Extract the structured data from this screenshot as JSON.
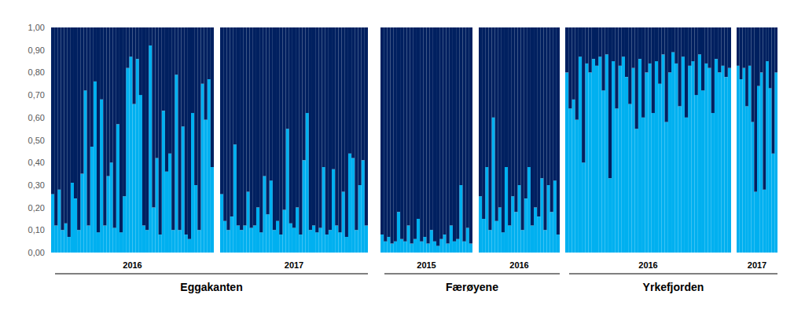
{
  "chart_data": [
    {
      "type": "bar",
      "stacked": true,
      "grid": false,
      "tick_labels": "y",
      "xlabel": "2016",
      "group": "Eggakanten",
      "ylim": [
        0,
        1
      ],
      "yticks": [
        {
          "value": 0,
          "label": "0,00"
        },
        {
          "value": 0.1,
          "label": "0,10"
        },
        {
          "value": 0.2,
          "label": "0,20"
        },
        {
          "value": 0.3,
          "label": "0,30"
        },
        {
          "value": 0.4,
          "label": "0,40"
        },
        {
          "value": 0.5,
          "label": "0,50"
        },
        {
          "value": 0.6,
          "label": "0,60"
        },
        {
          "value": 0.7,
          "label": "0,70"
        },
        {
          "value": 0.8,
          "label": "0,80"
        },
        {
          "value": 0.9,
          "label": "0,90"
        },
        {
          "value": 1,
          "label": "1,00"
        }
      ],
      "categories": [
        null,
        null,
        null,
        null,
        null,
        null,
        null,
        null,
        null,
        null,
        null,
        null,
        null,
        null,
        null,
        null,
        null,
        null,
        null,
        null,
        null,
        null,
        null,
        null,
        null,
        null,
        null,
        null,
        null,
        null,
        null,
        null,
        null,
        null,
        null,
        null,
        null,
        null,
        null,
        null,
        null,
        null,
        null,
        null,
        null,
        null,
        null,
        null,
        null,
        null
      ],
      "series": [
        {
          "color": "#00b0f0",
          "values": [
            0.26,
            0.12,
            0.28,
            0.1,
            0.13,
            0.07,
            0.31,
            0.24,
            0.1,
            0.35,
            0.72,
            0.12,
            0.47,
            0.76,
            0.09,
            0.68,
            0.12,
            0.34,
            0.4,
            0.11,
            0.57,
            0.09,
            0.25,
            0.82,
            0.87,
            0.66,
            0.86,
            0.7,
            0.12,
            0.1,
            0.92,
            0.2,
            0.42,
            0.08,
            0.63,
            0.36,
            0.44,
            0.1,
            0.79,
            0.1,
            0.56,
            0.08,
            0.06,
            0.62,
            0.3,
            0.1,
            0.75,
            0.59,
            0.77,
            0.38
          ]
        },
        {
          "color": "#002060",
          "values": [
            0.74,
            0.88,
            0.72,
            0.9,
            0.87,
            0.93,
            0.69,
            0.76,
            0.9,
            0.65,
            0.28,
            0.88,
            0.53,
            0.24,
            0.91,
            0.32,
            0.88,
            0.66,
            0.6,
            0.89,
            0.43,
            0.91,
            0.75,
            0.18,
            0.13,
            0.34,
            0.14,
            0.3,
            0.88,
            0.9,
            0.08,
            0.8,
            0.58,
            0.92,
            0.37,
            0.64,
            0.56,
            0.9,
            0.21,
            0.9,
            0.44,
            0.92,
            0.94,
            0.38,
            0.7,
            0.9,
            0.25,
            0.41,
            0.23,
            0.62
          ]
        }
      ]
    },
    {
      "type": "bar",
      "stacked": true,
      "grid": false,
      "tick_labels": false,
      "xlabel": "2017",
      "group": "Eggakanten",
      "ylim": [
        0,
        1
      ],
      "yticks": [
        {
          "value": 0,
          "label": "0,00"
        },
        {
          "value": 0.1,
          "label": "0,10"
        },
        {
          "value": 0.2,
          "label": "0,20"
        },
        {
          "value": 0.3,
          "label": "0,30"
        },
        {
          "value": 0.4,
          "label": "0,40"
        },
        {
          "value": 0.5,
          "label": "0,50"
        },
        {
          "value": 0.6,
          "label": "0,60"
        },
        {
          "value": 0.7,
          "label": "0,70"
        },
        {
          "value": 0.8,
          "label": "0,80"
        },
        {
          "value": 0.9,
          "label": "0,90"
        },
        {
          "value": 1,
          "label": "1,00"
        }
      ],
      "categories": [
        null,
        null,
        null,
        null,
        null,
        null,
        null,
        null,
        null,
        null,
        null,
        null,
        null,
        null,
        null,
        null,
        null,
        null,
        null,
        null,
        null,
        null,
        null,
        null,
        null,
        null,
        null,
        null,
        null,
        null,
        null,
        null,
        null,
        null,
        null,
        null,
        null,
        null,
        null,
        null,
        null,
        null,
        null,
        null,
        null
      ],
      "series": [
        {
          "color": "#00b0f0",
          "values": [
            0.26,
            0.14,
            0.1,
            0.16,
            0.48,
            0.12,
            0.1,
            0.12,
            0.27,
            0.11,
            0.12,
            0.2,
            0.09,
            0.34,
            0.17,
            0.32,
            0.1,
            0.14,
            0.08,
            0.19,
            0.55,
            0.13,
            0.11,
            0.2,
            0.08,
            0.41,
            0.62,
            0.1,
            0.12,
            0.09,
            0.11,
            0.38,
            0.08,
            0.1,
            0.37,
            0.12,
            0.09,
            0.27,
            0.07,
            0.44,
            0.42,
            0.1,
            0.3,
            0.41,
            0.12
          ]
        },
        {
          "color": "#002060",
          "values": [
            0.74,
            0.86,
            0.9,
            0.84,
            0.52,
            0.88,
            0.9,
            0.88,
            0.73,
            0.89,
            0.88,
            0.8,
            0.91,
            0.66,
            0.83,
            0.68,
            0.9,
            0.86,
            0.92,
            0.81,
            0.45,
            0.87,
            0.89,
            0.8,
            0.92,
            0.59,
            0.38,
            0.9,
            0.88,
            0.91,
            0.89,
            0.62,
            0.92,
            0.9,
            0.63,
            0.88,
            0.91,
            0.73,
            0.93,
            0.56,
            0.58,
            0.9,
            0.7,
            0.59,
            0.88
          ]
        }
      ]
    },
    {
      "type": "bar",
      "stacked": true,
      "grid": false,
      "tick_labels": false,
      "xlabel": "2015",
      "group": "Færøyene",
      "ylim": [
        0,
        1
      ],
      "yticks": [
        {
          "value": 0,
          "label": "0,00"
        },
        {
          "value": 0.1,
          "label": "0,10"
        },
        {
          "value": 0.2,
          "label": "0,20"
        },
        {
          "value": 0.3,
          "label": "0,30"
        },
        {
          "value": 0.4,
          "label": "0,40"
        },
        {
          "value": 0.5,
          "label": "0,50"
        },
        {
          "value": 0.6,
          "label": "0,60"
        },
        {
          "value": 0.7,
          "label": "0,70"
        },
        {
          "value": 0.8,
          "label": "0,80"
        },
        {
          "value": 0.9,
          "label": "0,90"
        },
        {
          "value": 1,
          "label": "1,00"
        }
      ],
      "categories": [
        null,
        null,
        null,
        null,
        null,
        null,
        null,
        null,
        null,
        null,
        null,
        null,
        null,
        null,
        null,
        null,
        null,
        null,
        null,
        null,
        null,
        null,
        null,
        null,
        null,
        null,
        null,
        null
      ],
      "series": [
        {
          "color": "#00b0f0",
          "values": [
            0.08,
            0.05,
            0.07,
            0.04,
            0.05,
            0.18,
            0.06,
            0.05,
            0.12,
            0.04,
            0.06,
            0.15,
            0.05,
            0.07,
            0.04,
            0.1,
            0.05,
            0.03,
            0.06,
            0.08,
            0.04,
            0.12,
            0.05,
            0.06,
            0.3,
            0.05,
            0.11,
            0.04
          ]
        },
        {
          "color": "#002060",
          "values": [
            0.92,
            0.95,
            0.93,
            0.96,
            0.95,
            0.82,
            0.94,
            0.95,
            0.88,
            0.96,
            0.94,
            0.85,
            0.95,
            0.93,
            0.96,
            0.9,
            0.95,
            0.97,
            0.94,
            0.92,
            0.96,
            0.88,
            0.95,
            0.94,
            0.7,
            0.95,
            0.89,
            0.96
          ]
        }
      ]
    },
    {
      "type": "bar",
      "stacked": true,
      "grid": false,
      "tick_labels": false,
      "xlabel": "2016",
      "group": "Færøyene",
      "ylim": [
        0,
        1
      ],
      "yticks": [
        {
          "value": 0,
          "label": "0,00"
        },
        {
          "value": 0.1,
          "label": "0,10"
        },
        {
          "value": 0.2,
          "label": "0,20"
        },
        {
          "value": 0.3,
          "label": "0,30"
        },
        {
          "value": 0.4,
          "label": "0,40"
        },
        {
          "value": 0.5,
          "label": "0,50"
        },
        {
          "value": 0.6,
          "label": "0,60"
        },
        {
          "value": 0.7,
          "label": "0,70"
        },
        {
          "value": 0.8,
          "label": "0,80"
        },
        {
          "value": 0.9,
          "label": "0,90"
        },
        {
          "value": 1,
          "label": "1,00"
        }
      ],
      "categories": [
        null,
        null,
        null,
        null,
        null,
        null,
        null,
        null,
        null,
        null,
        null,
        null,
        null,
        null,
        null,
        null,
        null,
        null,
        null,
        null,
        null,
        null,
        null,
        null,
        null
      ],
      "series": [
        {
          "color": "#00b0f0",
          "values": [
            0.25,
            0.15,
            0.38,
            0.1,
            0.6,
            0.14,
            0.2,
            0.09,
            0.38,
            0.12,
            0.25,
            0.18,
            0.3,
            0.1,
            0.24,
            0.38,
            0.12,
            0.2,
            0.16,
            0.33,
            0.1,
            0.3,
            0.18,
            0.32,
            0.08
          ]
        },
        {
          "color": "#002060",
          "values": [
            0.75,
            0.85,
            0.62,
            0.9,
            0.4,
            0.86,
            0.8,
            0.91,
            0.62,
            0.88,
            0.75,
            0.82,
            0.7,
            0.9,
            0.76,
            0.62,
            0.88,
            0.8,
            0.84,
            0.67,
            0.9,
            0.7,
            0.82,
            0.68,
            0.92
          ]
        }
      ]
    },
    {
      "type": "bar",
      "stacked": true,
      "grid": false,
      "tick_labels": false,
      "xlabel": "2016",
      "group": "Yrkefjorden",
      "ylim": [
        0,
        1
      ],
      "yticks": [
        {
          "value": 0,
          "label": "0,00"
        },
        {
          "value": 0.1,
          "label": "0,10"
        },
        {
          "value": 0.2,
          "label": "0,20"
        },
        {
          "value": 0.3,
          "label": "0,30"
        },
        {
          "value": 0.4,
          "label": "0,40"
        },
        {
          "value": 0.5,
          "label": "0,50"
        },
        {
          "value": 0.6,
          "label": "0,60"
        },
        {
          "value": 0.7,
          "label": "0,70"
        },
        {
          "value": 0.8,
          "label": "0,80"
        },
        {
          "value": 0.9,
          "label": "0,90"
        },
        {
          "value": 1,
          "label": "1,00"
        }
      ],
      "categories": [
        null,
        null,
        null,
        null,
        null,
        null,
        null,
        null,
        null,
        null,
        null,
        null,
        null,
        null,
        null,
        null,
        null,
        null,
        null,
        null,
        null,
        null,
        null,
        null,
        null,
        null,
        null,
        null,
        null,
        null,
        null,
        null,
        null,
        null,
        null,
        null,
        null,
        null,
        null,
        null,
        null,
        null,
        null,
        null,
        null,
        null,
        null,
        null,
        null,
        null
      ],
      "series": [
        {
          "color": "#00b0f0",
          "values": [
            0.8,
            0.64,
            0.68,
            0.59,
            0.87,
            0.4,
            0.84,
            0.8,
            0.86,
            0.83,
            0.87,
            0.72,
            0.88,
            0.33,
            0.85,
            0.64,
            0.83,
            0.87,
            0.78,
            0.66,
            0.82,
            0.55,
            0.86,
            0.6,
            0.8,
            0.84,
            0.62,
            0.85,
            0.75,
            0.88,
            0.58,
            0.8,
            0.89,
            0.84,
            0.65,
            0.87,
            0.6,
            0.83,
            0.85,
            0.7,
            0.88,
            0.72,
            0.84,
            0.82,
            0.62,
            0.86,
            0.8,
            0.83,
            0.78,
            0.82
          ]
        },
        {
          "color": "#002060",
          "values": [
            0.2,
            0.36,
            0.32,
            0.41,
            0.13,
            0.6,
            0.16,
            0.2,
            0.14,
            0.17,
            0.13,
            0.28,
            0.12,
            0.67,
            0.15,
            0.36,
            0.17,
            0.13,
            0.22,
            0.34,
            0.18,
            0.45,
            0.14,
            0.4,
            0.2,
            0.16,
            0.38,
            0.15,
            0.25,
            0.12,
            0.42,
            0.2,
            0.11,
            0.16,
            0.35,
            0.13,
            0.4,
            0.17,
            0.15,
            0.3,
            0.12,
            0.28,
            0.16,
            0.18,
            0.38,
            0.14,
            0.2,
            0.17,
            0.22,
            0.18
          ]
        }
      ]
    },
    {
      "type": "bar",
      "stacked": true,
      "grid": false,
      "tick_labels": false,
      "xlabel": "2017",
      "group": "Yrkefjorden",
      "ylim": [
        0,
        1
      ],
      "yticks": [
        {
          "value": 0,
          "label": "0,00"
        },
        {
          "value": 0.1,
          "label": "0,10"
        },
        {
          "value": 0.2,
          "label": "0,20"
        },
        {
          "value": 0.3,
          "label": "0,30"
        },
        {
          "value": 0.4,
          "label": "0,40"
        },
        {
          "value": 0.5,
          "label": "0,50"
        },
        {
          "value": 0.6,
          "label": "0,60"
        },
        {
          "value": 0.7,
          "label": "0,70"
        },
        {
          "value": 0.8,
          "label": "0,80"
        },
        {
          "value": 0.9,
          "label": "0,90"
        },
        {
          "value": 1,
          "label": "1,00"
        }
      ],
      "categories": [
        null,
        null,
        null,
        null,
        null,
        null,
        null,
        null,
        null,
        null,
        null,
        null,
        null,
        null
      ],
      "series": [
        {
          "color": "#00b0f0",
          "values": [
            0.83,
            0.77,
            0.82,
            0.65,
            0.83,
            0.58,
            0.27,
            0.74,
            0.8,
            0.28,
            0.85,
            0.73,
            0.44,
            0.8
          ]
        },
        {
          "color": "#002060",
          "values": [
            0.17,
            0.23,
            0.18,
            0.35,
            0.17,
            0.42,
            0.73,
            0.26,
            0.2,
            0.72,
            0.15,
            0.27,
            0.56,
            0.2
          ]
        }
      ]
    }
  ]
}
